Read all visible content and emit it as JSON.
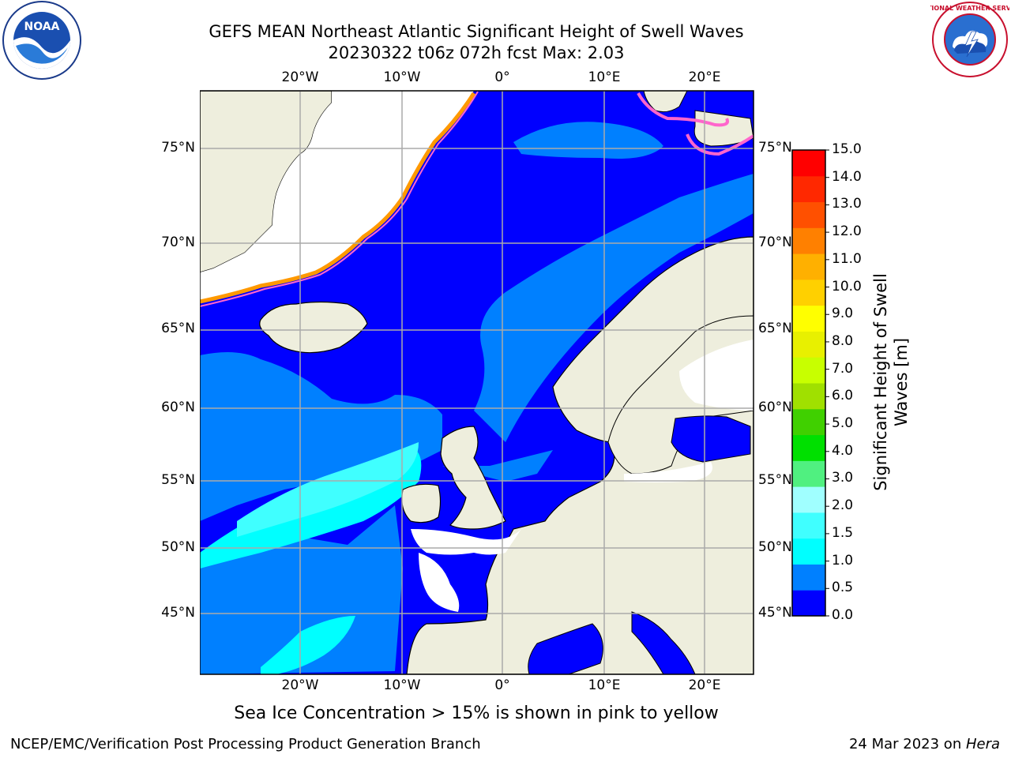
{
  "title": {
    "line1": "GEFS MEAN Northeast Atlantic Significant Height of Swell Waves",
    "line2": "20230322 t06z 072h fcst   Max: 2.03"
  },
  "map": {
    "lon_labels": [
      "20°W",
      "10°W",
      "0°",
      "10°E",
      "20°E"
    ],
    "lat_labels": [
      "75°N",
      "70°N",
      "65°N",
      "60°N",
      "55°N",
      "50°N",
      "45°N"
    ],
    "land_color": "#eeeedd",
    "ocean_base_color": "#0000ff"
  },
  "colorbar": {
    "label_line1": "Significant Height of Swell",
    "label_line2": "Waves [m]",
    "ticks": [
      "15.0",
      "14.0",
      "13.0",
      "12.0",
      "11.0",
      "10.0",
      "9.0",
      "8.0",
      "7.0",
      "6.0",
      "5.0",
      "4.0",
      "3.0",
      "2.0",
      "1.5",
      "1.0",
      "0.5",
      "0.0"
    ],
    "colors": [
      "#0000ff",
      "#0080ff",
      "#00ffff",
      "#40ffff",
      "#a0ffff",
      "#50f080",
      "#00e000",
      "#40d000",
      "#a0e000",
      "#c8ff00",
      "#e8f000",
      "#ffff00",
      "#ffd000",
      "#ffb000",
      "#ff8000",
      "#ff5000",
      "#ff2800",
      "#ff0000"
    ]
  },
  "footnote": "Sea Ice Concentration > 15% is shown in pink to yellow",
  "credit_left": "NCEP/EMC/Verification Post Processing Product Generation Branch",
  "credit_right_date": "24 Mar 2023 on ",
  "credit_right_host": "Hera",
  "logos": {
    "noaa_text": "NOAA",
    "nws_text": "NATIONAL WEATHER SERVICE"
  }
}
